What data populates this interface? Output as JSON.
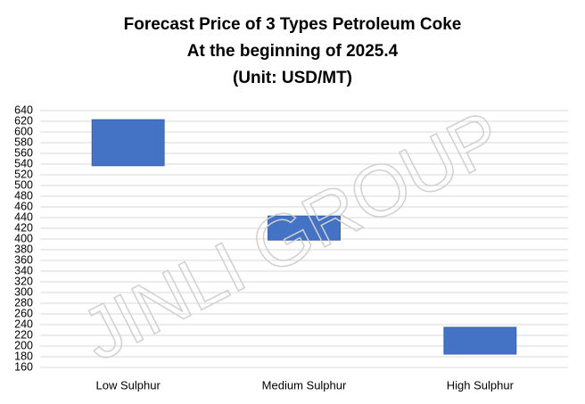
{
  "chart_data": {
    "type": "range",
    "title": [
      "Forecast Price of 3 Types Petroleum Coke",
      "At the beginning of 2025.4",
      "(Unit: USD/MT)"
    ],
    "watermark": "JINLI GROUP",
    "categories": [
      "Low Sulphur",
      "Medium Sulphur",
      "High Sulphur"
    ],
    "low": [
      537,
      398,
      185
    ],
    "high": [
      623,
      443,
      235
    ],
    "color": "#4472c4",
    "ylim": [
      160,
      640
    ],
    "yticks": [
      160,
      180,
      200,
      220,
      240,
      260,
      280,
      300,
      320,
      340,
      360,
      380,
      400,
      420,
      440,
      460,
      480,
      500,
      520,
      540,
      560,
      580,
      600,
      620,
      640
    ],
    "grid": true
  }
}
